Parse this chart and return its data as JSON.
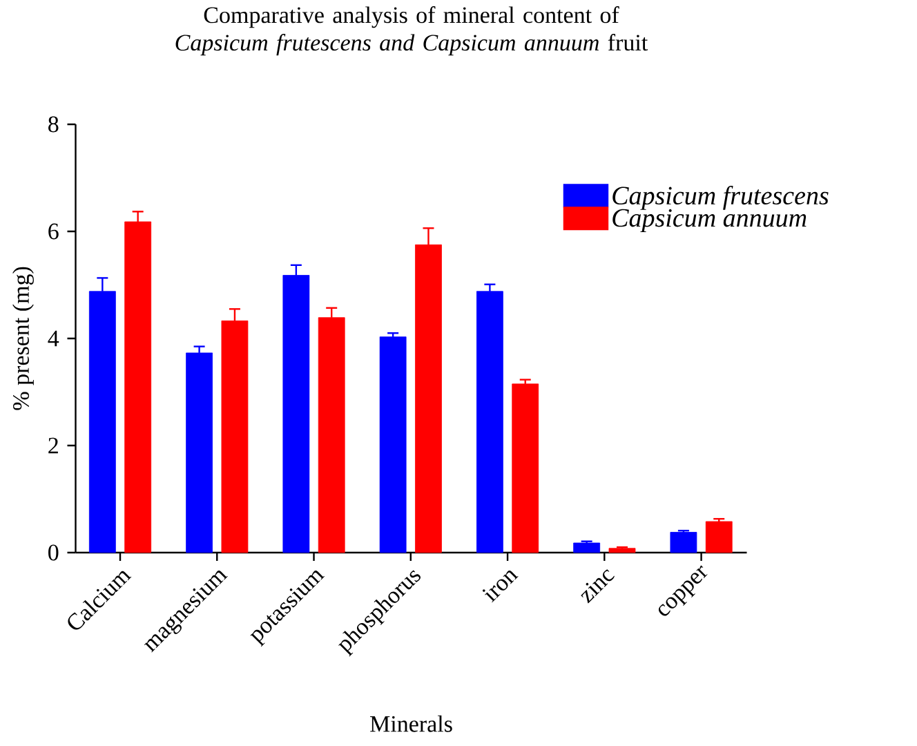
{
  "chart_data": {
    "type": "bar",
    "title": "Comparative analysis of mineral content of *Capsicum frutescens and Capsicum annuum* fruit",
    "xlabel": "Minerals",
    "ylabel": "% present (mg)",
    "categories": [
      "Calcium",
      "magnesium",
      "potassium",
      "phosphorus",
      "iron",
      "zinc",
      "copper"
    ],
    "series": [
      {
        "name": "Capsicum frutescens",
        "color": "#0000ff",
        "values": [
          4.88,
          3.73,
          5.18,
          4.03,
          4.88,
          0.18,
          0.38
        ],
        "errors": [
          0.25,
          0.12,
          0.19,
          0.07,
          0.13,
          0.03,
          0.03
        ]
      },
      {
        "name": "Capsicum annuum",
        "color": "#ff0000",
        "values": [
          6.18,
          4.33,
          4.39,
          5.75,
          3.15,
          0.08,
          0.58
        ],
        "errors": [
          0.19,
          0.22,
          0.18,
          0.31,
          0.08,
          0.02,
          0.05
        ]
      }
    ],
    "ylim": [
      0,
      8
    ],
    "yticks": [
      0,
      2,
      4,
      6,
      8
    ],
    "legend": "top right"
  }
}
